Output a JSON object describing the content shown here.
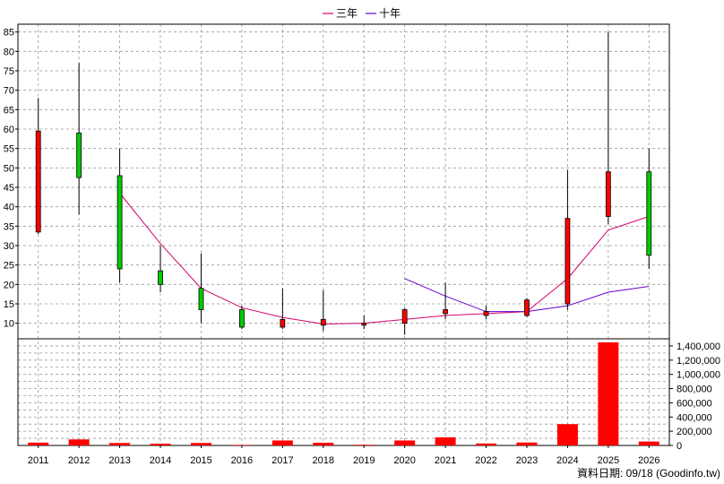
{
  "chart_data": {
    "type": "candlestick",
    "legend": [
      {
        "name": "三年",
        "color": "#d6006f"
      },
      {
        "name": "十年",
        "color": "#6600cc"
      }
    ],
    "years": [
      "2011",
      "2012",
      "2013",
      "2014",
      "2015",
      "2016",
      "2017",
      "2018",
      "2019",
      "2020",
      "2021",
      "2022",
      "2023",
      "2024",
      "2025",
      "2026"
    ],
    "candles": [
      {
        "open": 33.5,
        "close": 59.5,
        "high": 68,
        "low": 33
      },
      {
        "open": 59,
        "close": 47.5,
        "high": 77,
        "low": 38
      },
      {
        "open": 48,
        "close": 24,
        "high": 55,
        "low": 20.5
      },
      {
        "open": 23.5,
        "close": 20,
        "high": 30,
        "low": 18
      },
      {
        "open": 19,
        "close": 13.5,
        "high": 28,
        "low": 10
      },
      {
        "open": 13.5,
        "close": 9,
        "high": 14.5,
        "low": 8.5
      },
      {
        "open": 9,
        "close": 11,
        "high": 19,
        "low": 8.5
      },
      {
        "open": 9.5,
        "close": 11,
        "high": 18.5,
        "low": 8
      },
      {
        "open": 9.5,
        "close": 10,
        "high": 12,
        "low": 8.5
      },
      {
        "open": 10,
        "close": 13.5,
        "high": 14,
        "low": 7
      },
      {
        "open": 12.5,
        "close": 13.5,
        "high": 20.5,
        "low": 11
      },
      {
        "open": 12,
        "close": 13,
        "high": 14.5,
        "low": 11
      },
      {
        "open": 12,
        "close": 16,
        "high": 16.5,
        "low": 11.5
      },
      {
        "open": 15,
        "close": 37,
        "high": 49.5,
        "low": 13.5
      },
      {
        "open": 37.5,
        "close": 49,
        "high": 85,
        "low": 35.5
      },
      {
        "open": 49,
        "close": 27.5,
        "high": 55,
        "low": 24
      }
    ],
    "line_3yr": [
      null,
      null,
      43.5,
      30.5,
      19,
      14,
      11.5,
      9.8,
      10,
      11,
      12,
      12.5,
      13,
      21.5,
      34,
      37.5
    ],
    "line_10yr": [
      null,
      null,
      null,
      null,
      null,
      null,
      null,
      null,
      null,
      21.5,
      17,
      13,
      13,
      14.5,
      18,
      19.5
    ],
    "volume": [
      40000,
      85000,
      35000,
      25000,
      35000,
      8000,
      70000,
      38000,
      10000,
      70000,
      115000,
      28000,
      42000,
      300000,
      1450000,
      55000
    ],
    "price_ticks": [
      10,
      15,
      20,
      25,
      30,
      35,
      40,
      45,
      50,
      55,
      60,
      65,
      70,
      75,
      80,
      85
    ],
    "volume_ticks": [
      "0",
      "200,000",
      "400,000",
      "600,000",
      "800,000",
      "1,000,000",
      "1,200,000",
      "1,400,000"
    ],
    "price_range": [
      6,
      87
    ],
    "volume_range": [
      0,
      1500000
    ],
    "up_color": "#ff0000",
    "down_color": "#00cc00",
    "volume_color": "#ff0000"
  },
  "source_text": "資料日期: 09/18  (Goodinfo.tw)"
}
